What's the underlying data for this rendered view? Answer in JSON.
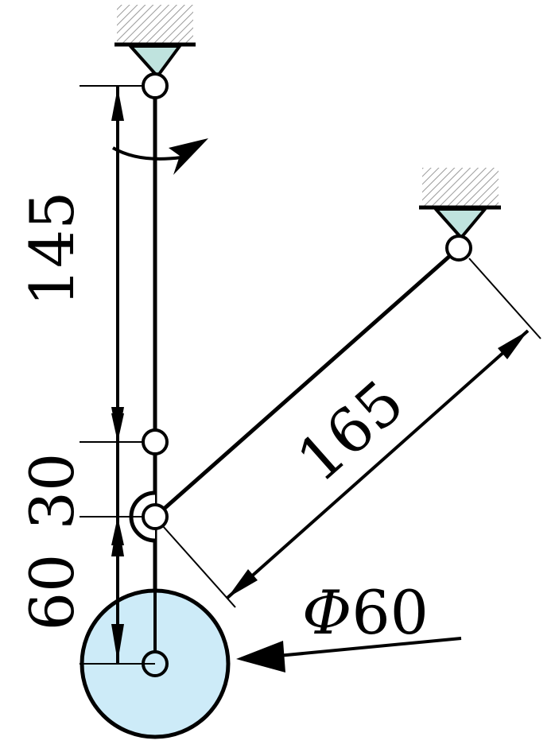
{
  "dimensions": {
    "upper_length": "145",
    "middle_gap": "30",
    "lower_length": "60",
    "diagonal_length": "165",
    "diameter_symbol": "Φ",
    "diameter_value": "60"
  },
  "colors": {
    "stroke": "#000000",
    "support_fill": "#bfe3de",
    "disk_fill": "#cdebf8",
    "hatch": "#9a9a9a"
  },
  "icons": {
    "rotation": "curved-arrow-icon",
    "force": "force-arrow-icon"
  }
}
